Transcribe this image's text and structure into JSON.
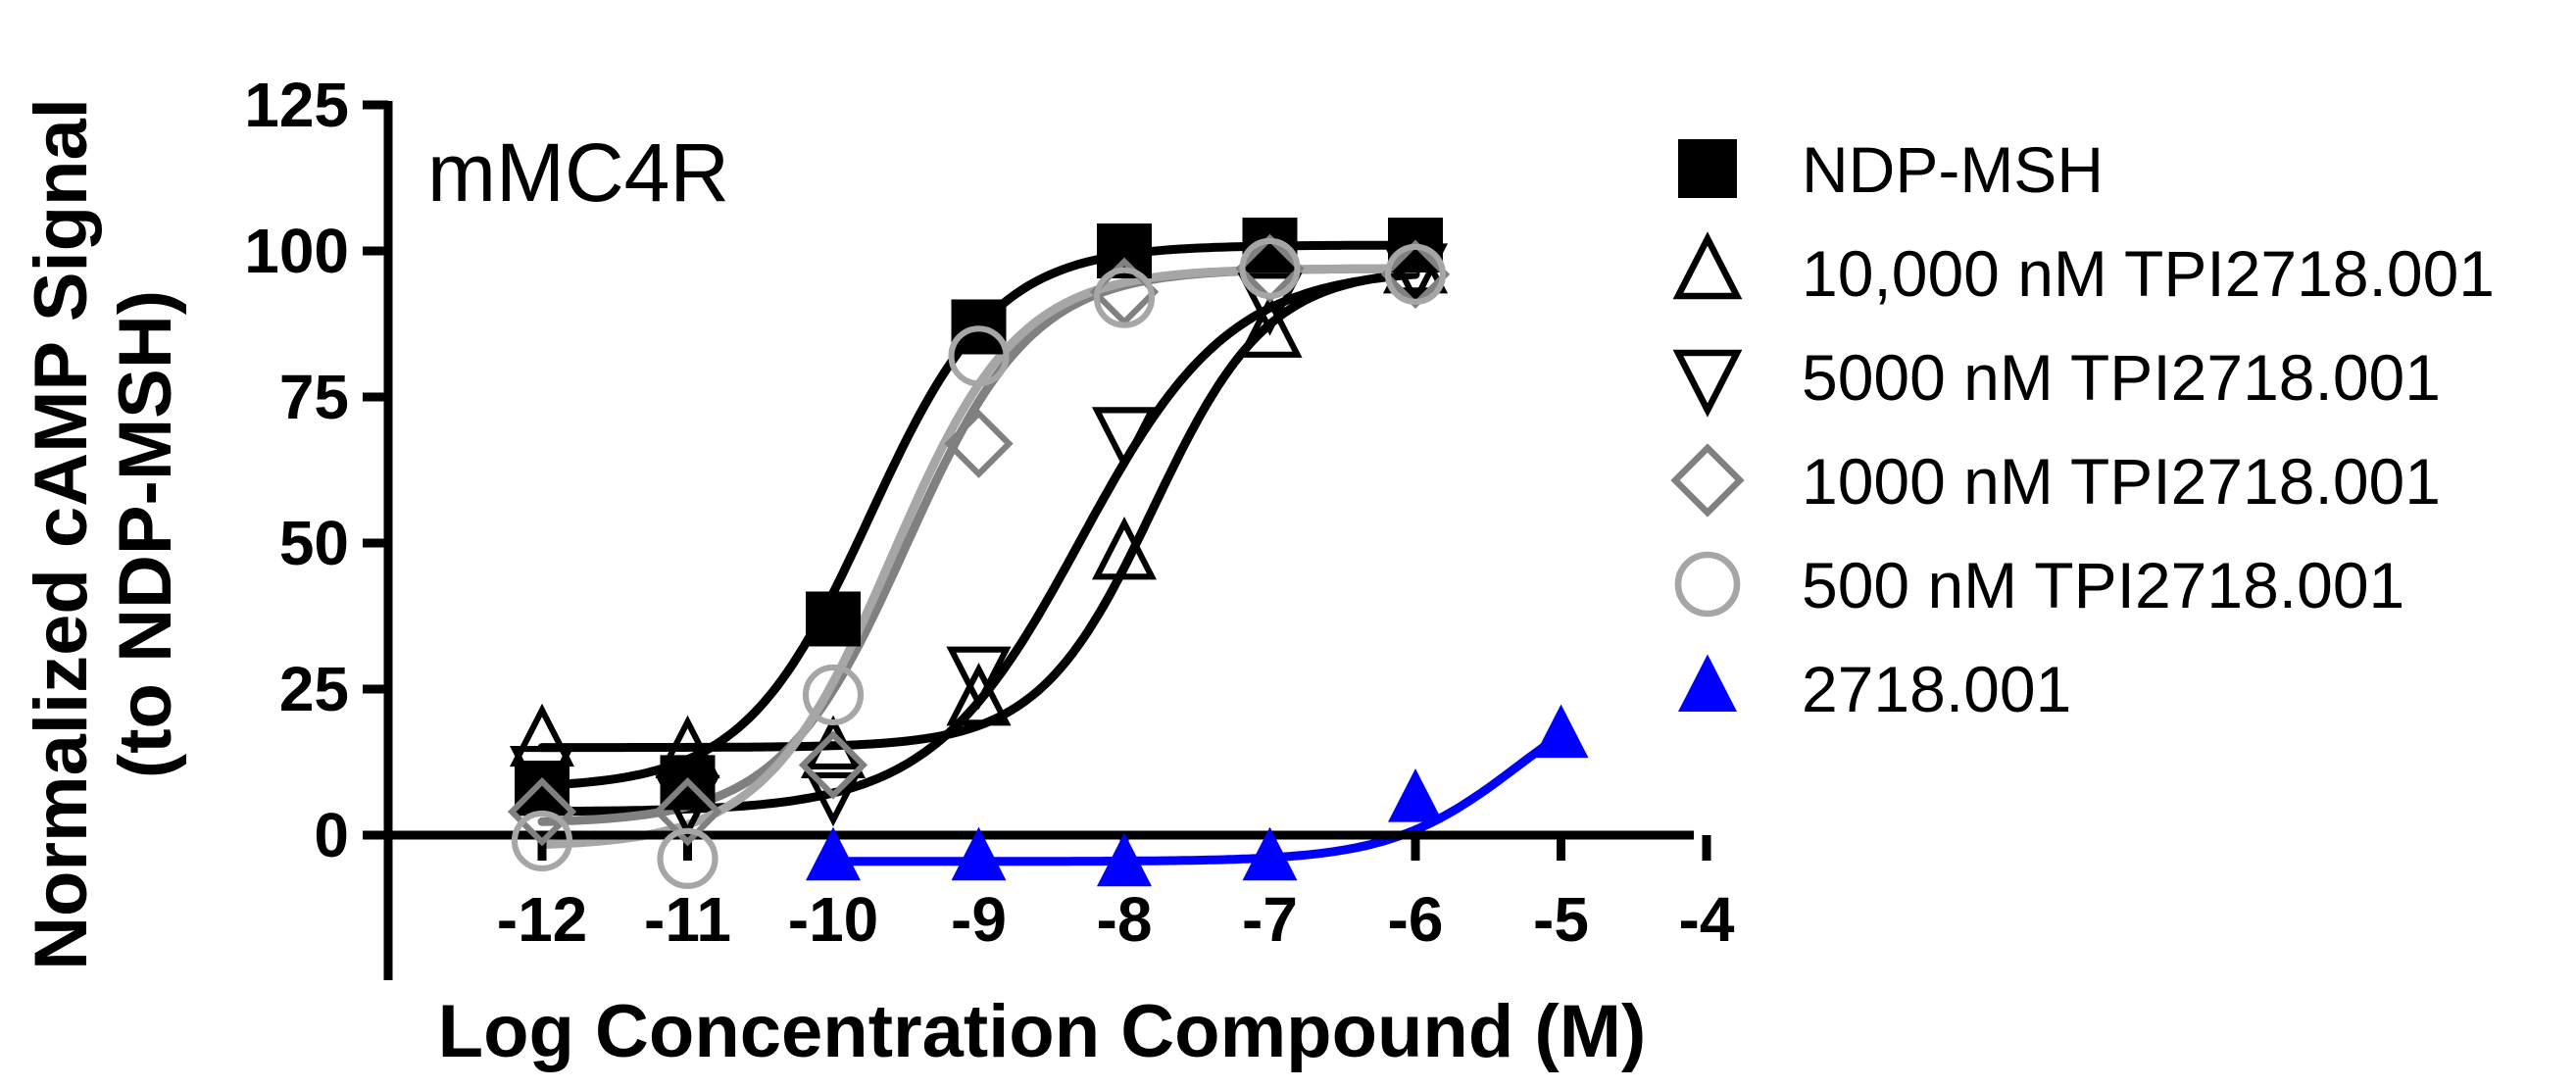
{
  "chart_data": {
    "type": "scatter",
    "title": "",
    "panel_label": "mMC4R",
    "xlabel": "Log Concentration Compound (M)",
    "ylabel_line1": "Normalized cAMP Signal",
    "ylabel_line2": "(to NDP-MSH)",
    "xlim": [
      -12.65,
      -4
    ],
    "ylim": [
      -25,
      125
    ],
    "x_ticks": [
      -12,
      -11,
      -10,
      -9,
      -8,
      -7,
      -6,
      -5,
      -4
    ],
    "x_tick_labels": [
      "-12",
      "-11",
      "-10",
      "-9",
      "-8",
      "-7",
      "-6",
      "-5",
      "-4"
    ],
    "y_ticks": [
      0,
      25,
      50,
      75,
      100,
      125
    ],
    "y_tick_labels": [
      "0",
      "25",
      "50",
      "75",
      "100",
      "125"
    ],
    "legend_position": "right",
    "grid": false,
    "series": [
      {
        "name": "NDP-MSH",
        "marker": "square-filled",
        "color": "#000000",
        "x": [
          -12,
          -11,
          -10,
          -9,
          -8,
          -7,
          -6
        ],
        "y": [
          8,
          9,
          37,
          87,
          100,
          101,
          101
        ],
        "fit": {
          "bottom": 8,
          "top": 101,
          "logEC50": -9.75,
          "hill": 1.0
        }
      },
      {
        "name": "10,000 nM TPI2718.001",
        "marker": "triangle-up-open",
        "color": "#000000",
        "x": [
          -12,
          -11,
          -10,
          -9,
          -8,
          -7,
          -6
        ],
        "y": [
          16,
          14,
          14,
          23,
          48,
          86,
          97
        ],
        "fit": {
          "bottom": 15,
          "top": 97,
          "logEC50": -7.8,
          "hill": 1.1
        }
      },
      {
        "name": "5000 nM TPI2718.001",
        "marker": "triangle-down-open",
        "color": "#000000",
        "x": [
          -12,
          -11,
          -10,
          -9,
          -8,
          -7,
          -6
        ],
        "y": [
          11,
          6,
          8,
          28,
          69,
          92,
          97
        ],
        "fit": {
          "bottom": 4,
          "top": 97,
          "logEC50": -8.3,
          "hill": 0.85
        }
      },
      {
        "name": "1000 nM TPI2718.001",
        "marker": "diamond-open",
        "color": "#808080",
        "x": [
          -12,
          -11,
          -10,
          -9,
          -8,
          -7,
          -6
        ],
        "y": [
          4,
          4,
          12,
          67,
          93,
          97,
          96
        ],
        "fit": {
          "bottom": 2,
          "top": 97,
          "logEC50": -9.5,
          "hill": 1.0
        }
      },
      {
        "name": "500 nM TPI2718.001",
        "marker": "circle-open",
        "color": "#a6a6a6",
        "x": [
          -12,
          -11,
          -10,
          -9,
          -8,
          -7,
          -6
        ],
        "y": [
          -1,
          -4,
          24,
          82,
          92,
          97,
          96
        ],
        "fit": {
          "bottom": -2,
          "top": 97,
          "logEC50": -9.6,
          "hill": 1.0
        }
      },
      {
        "name": "2718.001",
        "marker": "triangle-up-filled",
        "color": "#0000ff",
        "x": [
          -10,
          -9,
          -8,
          -7,
          -6,
          -5
        ],
        "y": [
          -4,
          -4,
          -5,
          -4,
          6,
          17
        ],
        "fit": {
          "bottom": -4.5,
          "top": 28,
          "logEC50": -5.3,
          "hill": 1.0
        }
      }
    ]
  }
}
